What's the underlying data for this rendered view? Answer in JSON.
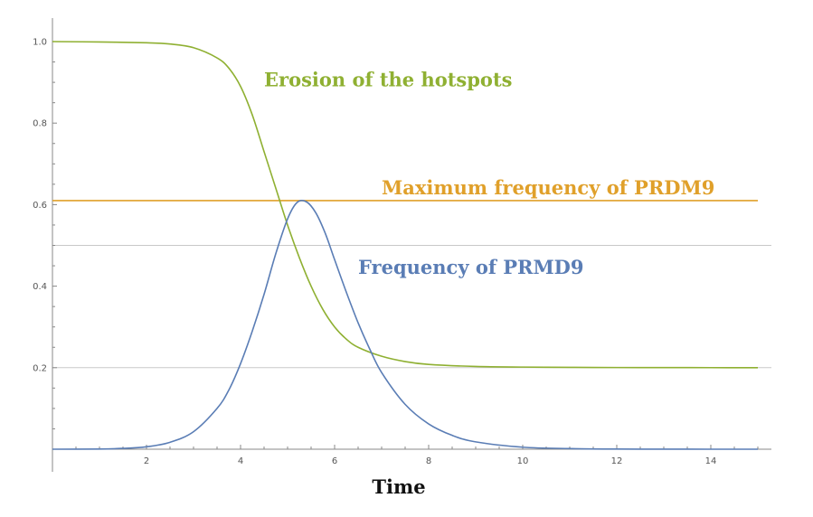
{
  "chart_data": {
    "type": "line",
    "title": "",
    "xlabel": "Time",
    "ylabel": "",
    "xlim": [
      0,
      15
    ],
    "ylim": [
      0,
      1.0
    ],
    "x_ticks": [
      2,
      4,
      6,
      8,
      10,
      12,
      14
    ],
    "x_tick_labels": [
      "2",
      "4",
      "6",
      "8",
      "10",
      "12",
      "14"
    ],
    "y_ticks": [
      0.2,
      0.4,
      0.6,
      0.8,
      1.0
    ],
    "y_tick_labels": [
      "0.2",
      "0.4",
      "0.6",
      "0.8",
      "1.0"
    ],
    "gridlines_y": [
      0.2,
      0.5
    ],
    "grid_color": "#c8c8c8",
    "series": [
      {
        "name": "Erosion of the hotspots",
        "color": "#8fb032",
        "x": [
          0,
          1,
          2,
          2.5,
          3,
          3.5,
          3.75,
          4,
          4.25,
          4.5,
          4.75,
          5,
          5.25,
          5.5,
          5.75,
          6,
          6.25,
          6.5,
          7,
          7.5,
          8,
          9,
          10,
          11,
          12,
          13,
          14,
          15
        ],
        "y": [
          1.0,
          0.999,
          0.997,
          0.994,
          0.985,
          0.96,
          0.935,
          0.89,
          0.82,
          0.73,
          0.64,
          0.55,
          0.47,
          0.4,
          0.343,
          0.3,
          0.27,
          0.25,
          0.228,
          0.215,
          0.208,
          0.203,
          0.2015,
          0.2008,
          0.2004,
          0.2002,
          0.2001,
          0.2
        ]
      },
      {
        "name": "Frequency of PRMD9",
        "color": "#5a7db5",
        "x": [
          0,
          1,
          1.5,
          2,
          2.5,
          3,
          3.5,
          3.75,
          4,
          4.25,
          4.5,
          4.75,
          5,
          5.2,
          5.4,
          5.6,
          5.8,
          6,
          6.25,
          6.5,
          6.75,
          7,
          7.5,
          8,
          8.5,
          9,
          10,
          11,
          12,
          13,
          14,
          15
        ],
        "y": [
          0,
          0.0005,
          0.002,
          0.006,
          0.017,
          0.043,
          0.1,
          0.145,
          0.21,
          0.29,
          0.38,
          0.48,
          0.565,
          0.605,
          0.607,
          0.58,
          0.53,
          0.465,
          0.385,
          0.31,
          0.245,
          0.188,
          0.11,
          0.062,
          0.034,
          0.018,
          0.005,
          0.0015,
          0.0004,
          0.0001,
          0,
          0
        ]
      },
      {
        "name": "Maximum frequency of PRDM9",
        "color": "#e0a02a",
        "x": [
          0,
          15
        ],
        "y": [
          0.61,
          0.61
        ]
      }
    ],
    "annotations": [
      {
        "text": "Erosion of the hotspots",
        "x": 4.5,
        "y": 0.89,
        "color": "#8fb032"
      },
      {
        "text": "Maximum frequency of PRDM9",
        "x": 7.0,
        "y": 0.625,
        "color": "#e0a02a"
      },
      {
        "text": "Frequency of PRMD9",
        "x": 6.5,
        "y": 0.43,
        "color": "#5a7db5"
      }
    ]
  }
}
